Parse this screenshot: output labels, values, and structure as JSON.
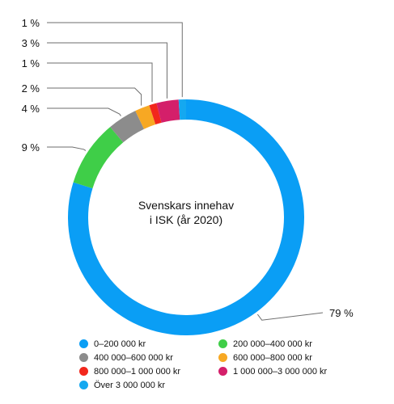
{
  "chart_data": {
    "type": "pie",
    "variant": "donut",
    "title": [
      "Svenskars innehav",
      "i ISK (år 2020)"
    ],
    "slices": [
      {
        "label": "0–200 000 kr",
        "value": 79,
        "value_label": "79 %",
        "color": "#0a9ef5"
      },
      {
        "label": "200 000–400 000 kr",
        "value": 9,
        "value_label": "9 %",
        "color": "#3fce48"
      },
      {
        "label": "400 000–600 000 kr",
        "value": 4,
        "value_label": "4 %",
        "color": "#8c8c8c"
      },
      {
        "label": "600 000–800 000 kr",
        "value": 2,
        "value_label": "2 %",
        "color": "#f7a823"
      },
      {
        "label": "800 000–1 000 000 kr",
        "value": 1,
        "value_label": "1 %",
        "color": "#f2271c"
      },
      {
        "label": "1 000 000–3 000 000 kr",
        "value": 3,
        "value_label": "3 %",
        "color": "#d41f6a"
      },
      {
        "label": "Över 3 000 000 kr",
        "value": 1,
        "value_label": "1 %",
        "color": "#15a8f0"
      }
    ],
    "legend_position": "bottom"
  }
}
